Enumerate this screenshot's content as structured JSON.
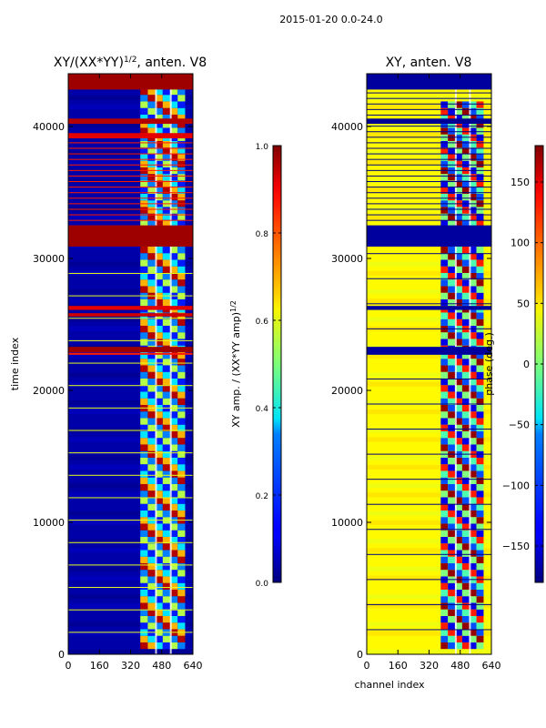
{
  "suptitle": "2015-01-20 0.0-24.0",
  "chart_data": [
    {
      "type": "heatmap",
      "title": "XY/(XX*YY)",
      "title_sup": "1/2",
      "title_suffix": ", anten. V8",
      "xlabel": "",
      "ylabel": "time index",
      "x_ticks": [
        0,
        160,
        320,
        480,
        640
      ],
      "y_ticks": [
        0,
        10000,
        20000,
        30000,
        40000
      ],
      "xlim": [
        0,
        640
      ],
      "ylim": [
        0,
        44000
      ],
      "colormap": "jet",
      "colorbar": {
        "label": "XY amp. / (XX*YY amp)",
        "label_sup": "1/2",
        "vmin": 0.0,
        "vmax": 1.0,
        "ticks": [
          "0.0",
          "0.2",
          "0.4",
          "0.6",
          "0.8",
          "1.0"
        ],
        "tick_values": [
          0.0,
          0.2,
          0.4,
          0.6,
          0.8,
          1.0
        ]
      },
      "background_value": 0.04,
      "bands": [
        {
          "y0": 42800,
          "y1": 44000,
          "value": 0.97
        },
        {
          "y0": 40200,
          "y1": 40600,
          "value": 0.95
        },
        {
          "y0": 39100,
          "y1": 39500,
          "value": 0.9
        },
        {
          "y0": 30900,
          "y1": 32500,
          "value": 0.97
        },
        {
          "y0": 26100,
          "y1": 26400,
          "value": 0.9
        },
        {
          "y0": 25600,
          "y1": 25850,
          "value": 0.92
        },
        {
          "y0": 22900,
          "y1": 23300,
          "value": 0.97
        },
        {
          "y0": 22700,
          "y1": 22850,
          "value": 0.85
        }
      ],
      "stripes": [
        {
          "y0": 32500,
          "y1": 39100,
          "step": 420,
          "value": 0.85
        },
        {
          "y0": 0,
          "y1": 30500,
          "step": 1700,
          "value": 0.6
        }
      ],
      "patch": {
        "x0": 370,
        "x1": 600,
        "y0": 400,
        "y1": 42800,
        "values": [
          0.95,
          0.7,
          0.35,
          0.15,
          0.55,
          0.25
        ]
      }
    },
    {
      "type": "heatmap",
      "title": "XY, anten. V8",
      "xlabel": "channel index",
      "ylabel": "",
      "x_ticks": [
        0,
        160,
        320,
        480,
        640
      ],
      "y_ticks": [
        0,
        10000,
        20000,
        30000,
        40000
      ],
      "xlim": [
        0,
        640
      ],
      "ylim": [
        0,
        44000
      ],
      "colormap": "jet",
      "colorbar": {
        "label": "phase (deg.)",
        "vmin": -180,
        "vmax": 180,
        "ticks": [
          "150",
          "100",
          "50",
          "0",
          "−50",
          "−100",
          "−150"
        ],
        "tick_values": [
          150,
          100,
          50,
          0,
          -50,
          -100,
          -150
        ]
      },
      "background_value": 0.63,
      "bands": [
        {
          "y0": 42800,
          "y1": 44000,
          "value": 0.03
        },
        {
          "y0": 30900,
          "y1": 32500,
          "value": 0.03
        },
        {
          "y0": 26100,
          "y1": 26400,
          "value": 0.03
        },
        {
          "y0": 22700,
          "y1": 23300,
          "value": 0.03
        },
        {
          "y0": 40200,
          "y1": 40600,
          "value": 0.02
        }
      ],
      "stripes": [
        {
          "y0": 32500,
          "y1": 42800,
          "step": 420,
          "value": 0.0
        },
        {
          "y0": 0,
          "y1": 30500,
          "step": 1900,
          "value": 0.0
        }
      ],
      "patch": {
        "x0": 380,
        "x1": 600,
        "y0": 400,
        "y1": 41500,
        "values": [
          0.98,
          0.2,
          0.45,
          0.85,
          0.1,
          0.5
        ]
      }
    }
  ]
}
